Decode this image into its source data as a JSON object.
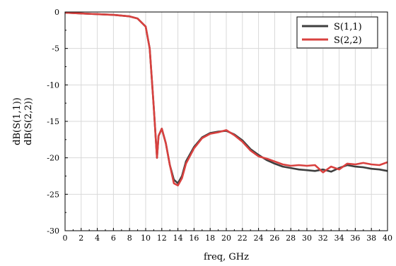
{
  "chart_data": {
    "type": "line",
    "title": "",
    "xlabel": "freq, GHz",
    "ylabel_line1": "dB(S(1,1))",
    "ylabel_line2": "dB(S(2,2))",
    "xlim": [
      0,
      40
    ],
    "ylim": [
      -30,
      0
    ],
    "xticks": [
      0,
      2,
      4,
      6,
      8,
      10,
      12,
      14,
      16,
      18,
      20,
      22,
      24,
      26,
      28,
      30,
      32,
      34,
      36,
      38,
      40
    ],
    "yticks": [
      0,
      -5,
      -10,
      -15,
      -20,
      -25,
      -30
    ],
    "grid": true,
    "legend_position": "top-right",
    "series": [
      {
        "name": "S(1,1)",
        "color": "#3f3f3f",
        "x": [
          0,
          2,
          4,
          6,
          8,
          9,
          10,
          10.5,
          11,
          11.4,
          11.6,
          12,
          12.5,
          13,
          13.5,
          14,
          14.5,
          15,
          16,
          17,
          18,
          19,
          20,
          21,
          22,
          23,
          24,
          25,
          26,
          27,
          28,
          29,
          30,
          31,
          32,
          33,
          34,
          35,
          36,
          37,
          38,
          39,
          40
        ],
        "y": [
          -0.1,
          -0.2,
          -0.3,
          -0.4,
          -0.6,
          -0.9,
          -2.0,
          -5.0,
          -13.0,
          -20.0,
          -17.0,
          -16.0,
          -18.0,
          -21.0,
          -23.0,
          -23.5,
          -22.5,
          -20.5,
          -18.5,
          -17.2,
          -16.6,
          -16.4,
          -16.3,
          -16.8,
          -17.6,
          -18.8,
          -19.6,
          -20.3,
          -20.8,
          -21.2,
          -21.4,
          -21.6,
          -21.7,
          -21.8,
          -21.6,
          -21.9,
          -21.4,
          -21.0,
          -21.2,
          -21.3,
          -21.5,
          -21.6,
          -21.8
        ]
      },
      {
        "name": "S(2,2)",
        "color": "#d9413f",
        "x": [
          0,
          2,
          4,
          6,
          8,
          9,
          10,
          10.5,
          11,
          11.4,
          11.6,
          12,
          12.5,
          13,
          13.5,
          14,
          14.5,
          15,
          16,
          17,
          18,
          19,
          20,
          21,
          22,
          23,
          24,
          25,
          26,
          27,
          28,
          29,
          30,
          31,
          32,
          33,
          34,
          35,
          36,
          37,
          38,
          39,
          40
        ],
        "y": [
          -0.1,
          -0.2,
          -0.3,
          -0.4,
          -0.6,
          -0.9,
          -2.0,
          -5.0,
          -13.0,
          -20.0,
          -17.0,
          -16.0,
          -18.0,
          -21.0,
          -23.5,
          -23.8,
          -22.8,
          -20.8,
          -18.7,
          -17.3,
          -16.7,
          -16.5,
          -16.2,
          -16.9,
          -17.8,
          -19.0,
          -19.8,
          -20.1,
          -20.5,
          -20.9,
          -21.1,
          -21.0,
          -21.1,
          -21.0,
          -22.0,
          -21.2,
          -21.6,
          -20.8,
          -20.9,
          -20.7,
          -20.9,
          -21.0,
          -20.6
        ]
      }
    ]
  }
}
